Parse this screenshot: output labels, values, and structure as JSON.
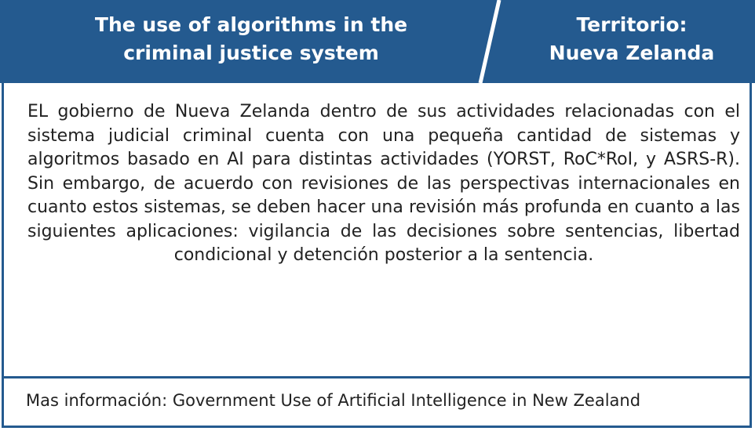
{
  "header": {
    "title": "The use of algorithms in the\ncriminal justice system",
    "territory": "Territorio:\nNueva Zelanda"
  },
  "body": {
    "text": "EL gobierno de Nueva Zelanda dentro de sus actividades relacionadas con el sistema judicial criminal cuenta con una pequeña cantidad de sistemas y algoritmos basado en AI para distintas actividades (YORST, RoC*RoI, y ASRS-R). Sin embargo, de acuerdo con revisiones de las perspectivas internacionales en cuanto estos sistemas, se deben hacer una revisión más profunda en cuanto a las siguientes aplicaciones: vigilancia de las decisiones sobre sentencias, libertad condicional y detención posterior a la sentencia."
  },
  "footer": {
    "text": "Mas información: Government Use of Artificial Intelligence in New Zealand"
  },
  "colors": {
    "accent": "#245a8f",
    "text": "#222222",
    "header_text": "#ffffff",
    "divider": "#ffffff"
  }
}
